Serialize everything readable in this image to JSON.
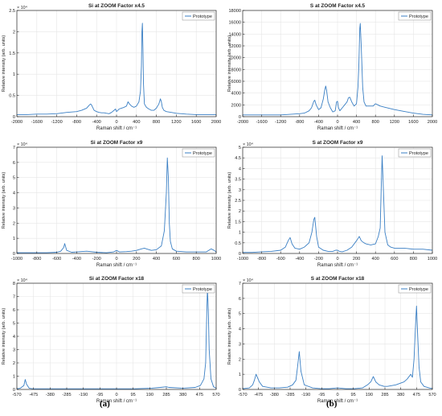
{
  "panel_labels": [
    "(a)",
    "(b)"
  ],
  "chart_data": [
    {
      "type": "line",
      "title": "Si at ZOOM Factor x4.5",
      "xlabel": "Raman shift / cm⁻¹",
      "ylabel": "Relative intensity (arb. units)",
      "y_exponent": "× 10⁴",
      "xlim": [
        -2000,
        2000
      ],
      "ylim": [
        0,
        2.5
      ],
      "xticks": [
        "-2000",
        "-1600",
        "-1200",
        "-800",
        "-400",
        "0",
        "400",
        "800",
        "1200",
        "1600",
        "2000"
      ],
      "xtick_values": [
        -2000,
        -1600,
        -1200,
        -800,
        -400,
        0,
        400,
        800,
        1200,
        1600,
        2000
      ],
      "yticks": [
        "0",
        "0.5",
        "1",
        "1.5",
        "2",
        "2.5"
      ],
      "ytick_values": [
        0,
        0.5,
        1,
        1.5,
        2,
        2.5
      ],
      "legend": "Prototype",
      "legend_position": "top-right",
      "grid": true,
      "series": [
        {
          "name": "Prototype",
          "x": [
            -2000,
            -1800,
            -1600,
            -1400,
            -1200,
            -1000,
            -800,
            -700,
            -600,
            -540,
            -520,
            -500,
            -450,
            -400,
            -350,
            -300,
            -250,
            -200,
            -150,
            -100,
            -50,
            -20,
            0,
            20,
            50,
            100,
            150,
            200,
            230,
            260,
            300,
            350,
            400,
            450,
            480,
            500,
            510,
            520,
            530,
            540,
            560,
            600,
            650,
            700,
            750,
            800,
            850,
            880,
            900,
            920,
            950,
            1000,
            1100,
            1200,
            1400,
            1600,
            1800,
            2000
          ],
          "values": [
            0.05,
            0.05,
            0.06,
            0.06,
            0.07,
            0.1,
            0.12,
            0.15,
            0.2,
            0.28,
            0.3,
            0.27,
            0.15,
            0.12,
            0.1,
            0.09,
            0.09,
            0.08,
            0.07,
            0.1,
            0.15,
            0.18,
            0.12,
            0.14,
            0.18,
            0.2,
            0.22,
            0.25,
            0.35,
            0.3,
            0.25,
            0.22,
            0.25,
            0.35,
            0.6,
            1.2,
            2.0,
            2.2,
            1.6,
            0.8,
            0.3,
            0.22,
            0.18,
            0.15,
            0.15,
            0.2,
            0.3,
            0.42,
            0.35,
            0.22,
            0.15,
            0.12,
            0.1,
            0.08,
            0.06,
            0.05,
            0.05,
            0.05
          ]
        }
      ]
    },
    {
      "type": "line",
      "title": "S at ZOOM Factor x4.5",
      "xlabel": "Raman shift / cm⁻¹",
      "ylabel": "Relative intensity (arb. units)",
      "y_exponent": "",
      "xlim": [
        -2000,
        2000
      ],
      "ylim": [
        0,
        18000
      ],
      "xticks": [
        "-2000",
        "-1600",
        "-1200",
        "-800",
        "-400",
        "0",
        "400",
        "800",
        "1200",
        "1600",
        "2000"
      ],
      "xtick_values": [
        -2000,
        -1600,
        -1200,
        -800,
        -400,
        0,
        400,
        800,
        1200,
        1600,
        2000
      ],
      "yticks": [
        "0",
        "2000",
        "4000",
        "6000",
        "8000",
        "10000",
        "12000",
        "14000",
        "16000",
        "18000"
      ],
      "ytick_values": [
        0,
        2000,
        4000,
        6000,
        8000,
        10000,
        12000,
        14000,
        16000,
        18000
      ],
      "legend": "Prototype",
      "legend_position": "top-right",
      "grid": true,
      "series": [
        {
          "name": "Prototype",
          "x": [
            -2000,
            -1800,
            -1600,
            -1400,
            -1200,
            -1000,
            -800,
            -700,
            -600,
            -550,
            -500,
            -480,
            -450,
            -400,
            -350,
            -300,
            -270,
            -250,
            -230,
            -200,
            -150,
            -100,
            -50,
            -20,
            0,
            20,
            50,
            100,
            150,
            200,
            230,
            260,
            300,
            350,
            400,
            430,
            450,
            470,
            480,
            500,
            530,
            560,
            600,
            650,
            700,
            750,
            800,
            850,
            900,
            1000,
            1200,
            1400,
            1600,
            1800,
            2000
          ],
          "values": [
            300,
            300,
            300,
            300,
            300,
            400,
            500,
            600,
            1000,
            1500,
            2600,
            2800,
            2000,
            1200,
            1500,
            3000,
            4500,
            5200,
            4500,
            2500,
            1500,
            800,
            1000,
            2500,
            2600,
            1500,
            1000,
            1500,
            2000,
            2500,
            3200,
            3300,
            2500,
            1800,
            2200,
            5000,
            9000,
            15000,
            15800,
            12000,
            5000,
            2500,
            1800,
            1800,
            1800,
            1800,
            2200,
            2000,
            1800,
            1600,
            1200,
            900,
            600,
            400,
            300
          ]
        }
      ]
    },
    {
      "type": "line",
      "title": "Si at ZOOM Factor x9",
      "xlabel": "Raman shift / cm⁻¹",
      "ylabel": "Relative intensity (arb. units)",
      "y_exponent": "× 10⁴",
      "xlim": [
        -1000,
        1000
      ],
      "ylim": [
        0,
        7
      ],
      "xticks": [
        "-1000",
        "-800",
        "-600",
        "-400",
        "-200",
        "0",
        "200",
        "400",
        "600",
        "800",
        "1000"
      ],
      "xtick_values": [
        -1000,
        -800,
        -600,
        -400,
        -200,
        0,
        200,
        400,
        600,
        800,
        1000
      ],
      "yticks": [
        "0",
        "1",
        "2",
        "3",
        "4",
        "5",
        "6",
        "7"
      ],
      "ytick_values": [
        0,
        1,
        2,
        3,
        4,
        5,
        6,
        7
      ],
      "legend": "Prototype",
      "legend_position": "top-right",
      "grid": true,
      "series": [
        {
          "name": "Prototype",
          "x": [
            -1000,
            -900,
            -800,
            -700,
            -600,
            -560,
            -530,
            -520,
            -500,
            -450,
            -400,
            -300,
            -200,
            -100,
            -30,
            0,
            30,
            100,
            150,
            200,
            250,
            280,
            300,
            350,
            400,
            450,
            480,
            500,
            510,
            520,
            530,
            540,
            560,
            600,
            700,
            800,
            900,
            950,
            980,
            1000
          ],
          "values": [
            0.05,
            0.05,
            0.05,
            0.05,
            0.08,
            0.15,
            0.4,
            0.65,
            0.2,
            0.08,
            0.1,
            0.15,
            0.08,
            0.05,
            0.1,
            0.2,
            0.1,
            0.12,
            0.15,
            0.2,
            0.3,
            0.35,
            0.3,
            0.2,
            0.25,
            0.5,
            1.5,
            4.0,
            6.3,
            5.0,
            2.0,
            0.8,
            0.3,
            0.15,
            0.1,
            0.1,
            0.1,
            0.3,
            0.2,
            0.1
          ]
        }
      ]
    },
    {
      "type": "line",
      "title": "S at ZOOM Factor x9",
      "xlabel": "Raman shift / cm⁻¹",
      "ylabel": "Relative intensity (arb. units)",
      "y_exponent": "× 10⁴",
      "xlim": [
        -1000,
        1000
      ],
      "ylim": [
        0,
        5
      ],
      "xticks": [
        "-1000",
        "-800",
        "-600",
        "-400",
        "-200",
        "0",
        "200",
        "400",
        "600",
        "800",
        "1000"
      ],
      "xtick_values": [
        -1000,
        -800,
        -600,
        -400,
        -200,
        0,
        200,
        400,
        600,
        800,
        1000
      ],
      "yticks": [
        "0",
        "0.5",
        "1",
        "1.5",
        "2",
        "2.5",
        "3",
        "3.5",
        "4",
        "4.5",
        "5"
      ],
      "ytick_values": [
        0,
        0.5,
        1,
        1.5,
        2,
        2.5,
        3,
        3.5,
        4,
        4.5,
        5
      ],
      "legend": "Prototype",
      "legend_position": "top-right",
      "grid": true,
      "series": [
        {
          "name": "Prototype",
          "x": [
            -1000,
            -900,
            -800,
            -700,
            -600,
            -550,
            -520,
            -500,
            -480,
            -450,
            -400,
            -350,
            -300,
            -270,
            -250,
            -240,
            -220,
            -200,
            -150,
            -100,
            -50,
            -20,
            0,
            20,
            50,
            100,
            150,
            200,
            230,
            250,
            280,
            300,
            350,
            400,
            430,
            450,
            460,
            470,
            480,
            500,
            530,
            560,
            600,
            700,
            800,
            900,
            1000
          ],
          "values": [
            0.05,
            0.05,
            0.08,
            0.1,
            0.15,
            0.3,
            0.6,
            0.75,
            0.45,
            0.25,
            0.2,
            0.3,
            0.5,
            1.0,
            1.6,
            1.7,
            0.8,
            0.3,
            0.15,
            0.1,
            0.1,
            0.15,
            0.15,
            0.1,
            0.08,
            0.15,
            0.3,
            0.6,
            0.8,
            0.6,
            0.5,
            0.45,
            0.4,
            0.45,
            0.8,
            1.2,
            3.0,
            4.6,
            3.5,
            1.0,
            0.4,
            0.3,
            0.25,
            0.25,
            0.2,
            0.2,
            0.15
          ]
        }
      ]
    },
    {
      "type": "line",
      "title": "Si at ZOOM Factor x18",
      "xlabel": "Raman shift / cm⁻¹",
      "ylabel": "Relative intensity (arb. units)",
      "y_exponent": "× 10⁴",
      "xlim": [
        -570,
        570
      ],
      "ylim": [
        0,
        8
      ],
      "xticks": [
        "-570",
        "-475",
        "-380",
        "-285",
        "-190",
        "-95",
        "0",
        "95",
        "190",
        "285",
        "380",
        "475",
        "570"
      ],
      "xtick_values": [
        -570,
        -475,
        -380,
        -285,
        -190,
        -95,
        0,
        95,
        190,
        285,
        380,
        475,
        570
      ],
      "yticks": [
        "0",
        "1",
        "2",
        "3",
        "4",
        "5",
        "6",
        "7",
        "8"
      ],
      "ytick_values": [
        0,
        1,
        2,
        3,
        4,
        5,
        6,
        7,
        8
      ],
      "legend": "Prototype",
      "legend_position": "top-right",
      "grid": true,
      "series": [
        {
          "name": "Prototype",
          "x": [
            -570,
            -550,
            -530,
            -522,
            -515,
            -500,
            -480,
            -450,
            -400,
            -300,
            -200,
            -100,
            0,
            100,
            200,
            250,
            285,
            300,
            380,
            450,
            480,
            500,
            510,
            515,
            520,
            525,
            530,
            540,
            555,
            570
          ],
          "values": [
            0.05,
            0.1,
            0.3,
            0.75,
            0.4,
            0.1,
            0.05,
            0.05,
            0.05,
            0.05,
            0.05,
            0.05,
            0.05,
            0.05,
            0.1,
            0.15,
            0.2,
            0.15,
            0.1,
            0.15,
            0.3,
            0.8,
            2.0,
            5.0,
            7.6,
            6.0,
            3.0,
            0.8,
            0.2,
            0.1
          ]
        }
      ]
    },
    {
      "type": "line",
      "title": "S at ZOOM Factor x18",
      "xlabel": "Raman shift / cm⁻¹",
      "ylabel": "Relative intensity (arb. units)",
      "y_exponent": "× 10⁴",
      "xlim": [
        -570,
        570
      ],
      "ylim": [
        0,
        7
      ],
      "xticks": [
        "-570",
        "-475",
        "-380",
        "-285",
        "-190",
        "-95",
        "0",
        "95",
        "190",
        "285",
        "380",
        "475",
        "570"
      ],
      "xtick_values": [
        -570,
        -475,
        -380,
        -285,
        -190,
        -95,
        0,
        95,
        190,
        285,
        380,
        475,
        570
      ],
      "yticks": [
        "0",
        "1",
        "2",
        "3",
        "4",
        "5",
        "6",
        "7"
      ],
      "ytick_values": [
        0,
        1,
        2,
        3,
        4,
        5,
        6,
        7
      ],
      "legend": "Prototype",
      "legend_position": "top-right",
      "grid": true,
      "series": [
        {
          "name": "Prototype",
          "x": [
            -570,
            -530,
            -510,
            -500,
            -490,
            -470,
            -450,
            -400,
            -350,
            -300,
            -270,
            -250,
            -240,
            -230,
            -220,
            -200,
            -150,
            -100,
            -50,
            0,
            50,
            100,
            150,
            180,
            200,
            215,
            230,
            250,
            280,
            300,
            350,
            400,
            420,
            440,
            450,
            460,
            470,
            475,
            480,
            490,
            500,
            520,
            550,
            570
          ],
          "values": [
            0.05,
            0.1,
            0.3,
            0.6,
            1.0,
            0.5,
            0.2,
            0.1,
            0.1,
            0.15,
            0.3,
            0.6,
            1.5,
            2.5,
            1.2,
            0.3,
            0.1,
            0.05,
            0.05,
            0.1,
            0.05,
            0.05,
            0.1,
            0.3,
            0.5,
            0.85,
            0.5,
            0.3,
            0.2,
            0.2,
            0.3,
            0.5,
            0.7,
            1.0,
            0.8,
            2.0,
            4.5,
            5.5,
            4.0,
            1.5,
            0.5,
            0.2,
            0.1,
            0.05
          ]
        }
      ]
    }
  ]
}
